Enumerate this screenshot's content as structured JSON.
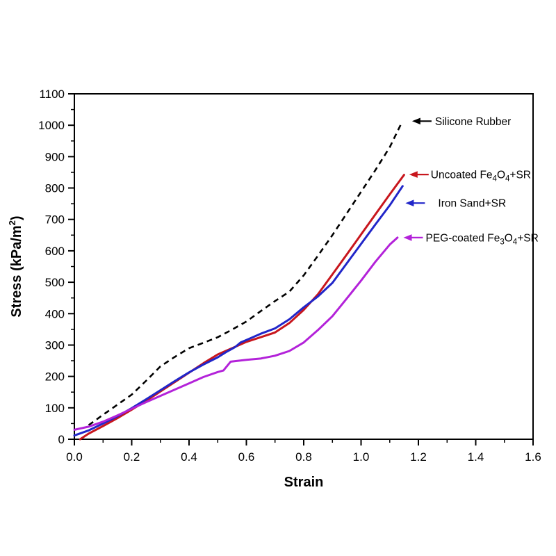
{
  "chart_data": {
    "type": "line",
    "title": "",
    "xlabel": "Strain",
    "ylabel_segments": [
      {
        "t": "Stress (kPa/m"
      },
      {
        "t": "2",
        "sup": true
      },
      {
        "t": ")"
      }
    ],
    "xlim": [
      0,
      1.6
    ],
    "ylim": [
      0,
      1100
    ],
    "grid": false,
    "box": true,
    "axis_color": "#000000",
    "x_ticks": {
      "values": [
        0,
        0.2,
        0.4,
        0.6,
        0.8,
        1.0,
        1.2,
        1.4,
        1.6
      ],
      "labels": [
        "0.0",
        "0.2",
        "0.4",
        "0.6",
        "0.8",
        "1.0",
        "1.2",
        "1.4",
        "1.6"
      ],
      "minor_values": [
        0.1,
        0.3,
        0.5,
        0.7,
        0.9,
        1.1,
        1.3,
        1.5
      ]
    },
    "y_ticks": {
      "values": [
        0,
        100,
        200,
        300,
        400,
        500,
        600,
        700,
        800,
        900,
        1000,
        1100
      ],
      "labels": [
        "0",
        "100",
        "200",
        "300",
        "400",
        "500",
        "600",
        "700",
        "800",
        "900",
        "1000",
        "1100"
      ],
      "minor_values": [
        50,
        150,
        250,
        350,
        450,
        550,
        650,
        750,
        850,
        950,
        1050
      ]
    },
    "series": [
      {
        "name": "Silicone Rubber",
        "slug": "silicone-rubber",
        "color": "#000000",
        "dash": "8 6",
        "width": 2.6,
        "points": [
          [
            0.05,
            45
          ],
          [
            0.1,
            78
          ],
          [
            0.15,
            110
          ],
          [
            0.2,
            142
          ],
          [
            0.25,
            186
          ],
          [
            0.3,
            232
          ],
          [
            0.35,
            262
          ],
          [
            0.4,
            290
          ],
          [
            0.45,
            307
          ],
          [
            0.5,
            325
          ],
          [
            0.55,
            349
          ],
          [
            0.6,
            375
          ],
          [
            0.65,
            408
          ],
          [
            0.7,
            440
          ],
          [
            0.75,
            470
          ],
          [
            0.8,
            522
          ],
          [
            0.85,
            585
          ],
          [
            0.9,
            650
          ],
          [
            0.95,
            719
          ],
          [
            1.0,
            788
          ],
          [
            1.05,
            857
          ],
          [
            1.1,
            930
          ],
          [
            1.14,
            1005
          ]
        ]
      },
      {
        "name": "Uncoated Fe4O4+SR",
        "slug": "uncoated-fe4o4-sr",
        "color": "#c8161d",
        "dash": "",
        "width": 3,
        "points": [
          [
            0.02,
            0
          ],
          [
            0.05,
            18
          ],
          [
            0.1,
            42
          ],
          [
            0.15,
            67
          ],
          [
            0.2,
            94
          ],
          [
            0.25,
            122
          ],
          [
            0.3,
            152
          ],
          [
            0.35,
            182
          ],
          [
            0.4,
            212
          ],
          [
            0.45,
            242
          ],
          [
            0.5,
            270
          ],
          [
            0.55,
            290
          ],
          [
            0.6,
            310
          ],
          [
            0.65,
            325
          ],
          [
            0.7,
            340
          ],
          [
            0.75,
            370
          ],
          [
            0.8,
            412
          ],
          [
            0.85,
            462
          ],
          [
            0.9,
            525
          ],
          [
            0.95,
            588
          ],
          [
            1.0,
            652
          ],
          [
            1.05,
            716
          ],
          [
            1.1,
            780
          ],
          [
            1.15,
            842
          ]
        ]
      },
      {
        "name": "Iron Sand+SR",
        "slug": "iron-sand-sr",
        "color": "#2126c9",
        "dash": "",
        "width": 3,
        "points": [
          [
            0.0,
            12
          ],
          [
            0.05,
            28
          ],
          [
            0.1,
            50
          ],
          [
            0.15,
            73
          ],
          [
            0.2,
            99
          ],
          [
            0.25,
            127
          ],
          [
            0.3,
            156
          ],
          [
            0.35,
            185
          ],
          [
            0.4,
            213
          ],
          [
            0.45,
            238
          ],
          [
            0.5,
            261
          ],
          [
            0.53,
            278
          ],
          [
            0.56,
            293
          ],
          [
            0.58,
            308
          ],
          [
            0.6,
            316
          ],
          [
            0.65,
            336
          ],
          [
            0.7,
            353
          ],
          [
            0.75,
            382
          ],
          [
            0.8,
            420
          ],
          [
            0.85,
            455
          ],
          [
            0.9,
            498
          ],
          [
            0.95,
            560
          ],
          [
            1.0,
            622
          ],
          [
            1.05,
            684
          ],
          [
            1.1,
            745
          ],
          [
            1.145,
            806
          ]
        ]
      },
      {
        "name": "PEG-coated Fe3O4+SR",
        "slug": "peg-coated-fe3o4-sr",
        "color": "#b322d9",
        "dash": "",
        "width": 3,
        "points": [
          [
            0.0,
            30
          ],
          [
            0.05,
            40
          ],
          [
            0.1,
            56
          ],
          [
            0.15,
            76
          ],
          [
            0.2,
            97
          ],
          [
            0.25,
            118
          ],
          [
            0.3,
            138
          ],
          [
            0.35,
            158
          ],
          [
            0.4,
            178
          ],
          [
            0.45,
            198
          ],
          [
            0.5,
            214
          ],
          [
            0.52,
            219
          ],
          [
            0.545,
            247
          ],
          [
            0.6,
            253
          ],
          [
            0.65,
            257
          ],
          [
            0.7,
            266
          ],
          [
            0.75,
            281
          ],
          [
            0.8,
            308
          ],
          [
            0.85,
            348
          ],
          [
            0.9,
            392
          ],
          [
            0.95,
            448
          ],
          [
            1.0,
            505
          ],
          [
            1.05,
            565
          ],
          [
            1.1,
            620
          ],
          [
            1.127,
            642
          ]
        ]
      }
    ],
    "annotations": [
      {
        "slug": "silicone-rubber",
        "color": "#000000",
        "segments": [
          {
            "t": "Silicone Rubber"
          }
        ],
        "tip": [
          1.178,
          1013
        ],
        "arrow_len": 28,
        "text_dx": 33
      },
      {
        "slug": "uncoated-fe4o4-sr",
        "color": "#c8161d",
        "segments": [
          {
            "t": "Uncoated Fe"
          },
          {
            "t": "4",
            "sub": true
          },
          {
            "t": "O"
          },
          {
            "t": "4",
            "sub": true
          },
          {
            "t": "+SR"
          }
        ],
        "tip": [
          1.168,
          843
        ],
        "arrow_len": 28,
        "text_dx": 31
      },
      {
        "slug": "iron-sand-sr",
        "color": "#2126c9",
        "segments": [
          {
            "t": "Iron Sand+SR"
          }
        ],
        "tip": [
          1.155,
          752
        ],
        "arrow_len": 28,
        "text_dx": 47
      },
      {
        "slug": "peg-coated-fe3o4-sr",
        "color": "#b322d9",
        "segments": [
          {
            "t": "PEG-coated Fe"
          },
          {
            "t": "3",
            "sub": true
          },
          {
            "t": "O"
          },
          {
            "t": "4",
            "sub": true
          },
          {
            "t": "+SR"
          }
        ],
        "tip": [
          1.148,
          642
        ],
        "arrow_len": 28,
        "text_dx": 32
      }
    ]
  }
}
